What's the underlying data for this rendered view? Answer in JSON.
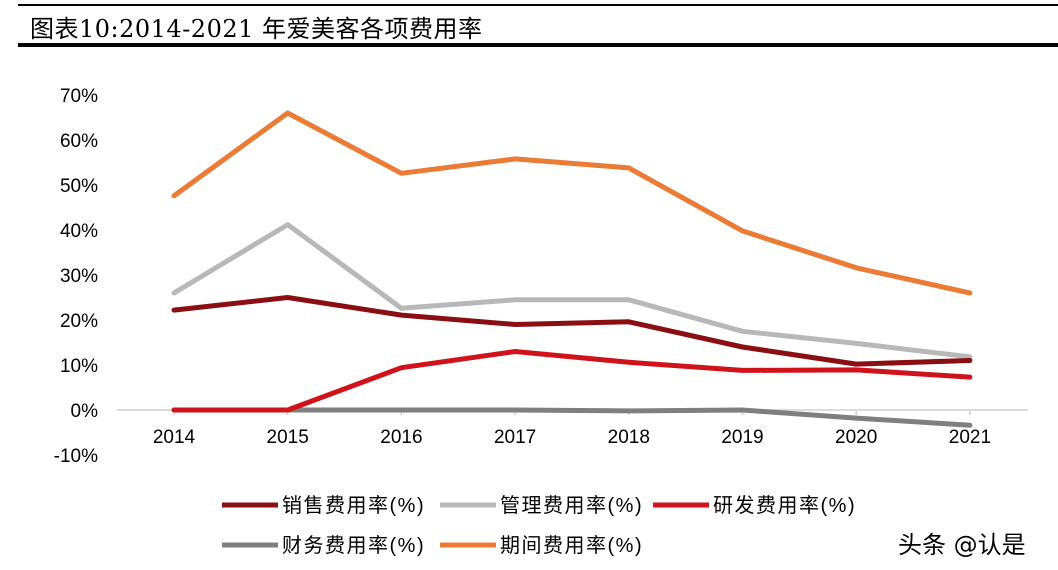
{
  "header": {
    "title": "图表10:2014-2021 年爱美客各项费用率"
  },
  "watermark": "头条 @认是",
  "chart_data": {
    "type": "line",
    "title": "图表10:2014-2021 年爱美客各项费用率",
    "xlabel": "",
    "ylabel": "",
    "categories": [
      "2014",
      "2015",
      "2016",
      "2017",
      "2018",
      "2019",
      "2020",
      "2021"
    ],
    "y_ticks": [
      -10,
      0,
      10,
      20,
      30,
      40,
      50,
      60,
      70
    ],
    "y_tick_labels": [
      "-10%",
      "0%",
      "10%",
      "20%",
      "30%",
      "40%",
      "50%",
      "60%",
      "70%"
    ],
    "ylim": [
      -10,
      70
    ],
    "grid": false,
    "legend_position": "bottom",
    "series": [
      {
        "name": "销售费用率(%)",
        "color": "#8b0e13",
        "values": [
          22.2,
          25.0,
          21.1,
          19.0,
          19.6,
          14.0,
          10.2,
          11.0
        ]
      },
      {
        "name": "管理费用率(%)",
        "color": "#b8b8b8",
        "values": [
          26.0,
          41.2,
          22.6,
          24.5,
          24.5,
          17.5,
          14.8,
          11.8
        ]
      },
      {
        "name": "研发费用率(%)",
        "color": "#d0121b",
        "values": [
          0.0,
          0.0,
          9.4,
          13.0,
          10.6,
          8.8,
          8.9,
          7.3
        ]
      },
      {
        "name": "财务费用率(%)",
        "color": "#7f7f7f",
        "values": [
          0.0,
          0.0,
          0.0,
          0.0,
          -0.2,
          0.0,
          -1.8,
          -3.4
        ]
      },
      {
        "name": "期间费用率(%)",
        "color": "#ec7b35",
        "values": [
          47.6,
          66.0,
          52.6,
          55.8,
          53.8,
          39.8,
          31.6,
          26.0
        ]
      }
    ]
  }
}
